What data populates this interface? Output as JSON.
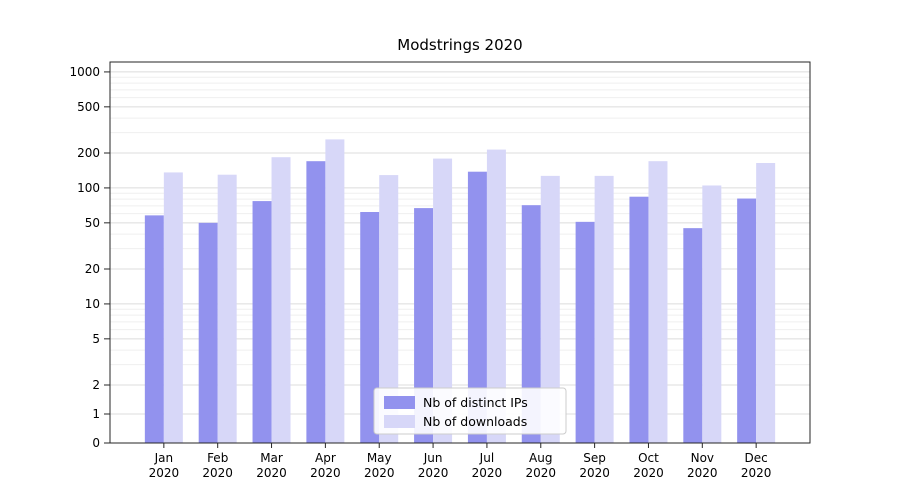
{
  "chart_data": {
    "type": "bar",
    "title": "Modstrings 2020",
    "categories": [
      "Jan",
      "Feb",
      "Mar",
      "Apr",
      "May",
      "Jun",
      "Jul",
      "Aug",
      "Sep",
      "Oct",
      "Nov",
      "Dec"
    ],
    "year_label": "2020",
    "series": [
      {
        "name": "Nb of distinct IPs",
        "color": "#9292ee",
        "values": [
          58,
          50,
          77,
          170,
          62,
          67,
          138,
          71,
          51,
          84,
          45,
          81
        ]
      },
      {
        "name": "Nb of downloads",
        "color": "#d7d7f8",
        "values": [
          136,
          130,
          184,
          262,
          129,
          179,
          214,
          127,
          127,
          170,
          105,
          164
        ]
      }
    ],
    "y_ticks": [
      0,
      1,
      2,
      5,
      10,
      20,
      50,
      100,
      200,
      500,
      1000
    ],
    "y_minor_ticks": [
      3,
      4,
      6,
      7,
      8,
      9,
      30,
      40,
      60,
      70,
      80,
      90,
      300,
      400,
      600,
      700,
      800,
      900
    ],
    "scale": "symlog",
    "grid": true,
    "legend_position": "lower center",
    "colors": {
      "grid_major": "#dcdcdc",
      "grid_minor": "#efefef",
      "axis": "#262626",
      "legend_border": "#cccccc"
    }
  }
}
